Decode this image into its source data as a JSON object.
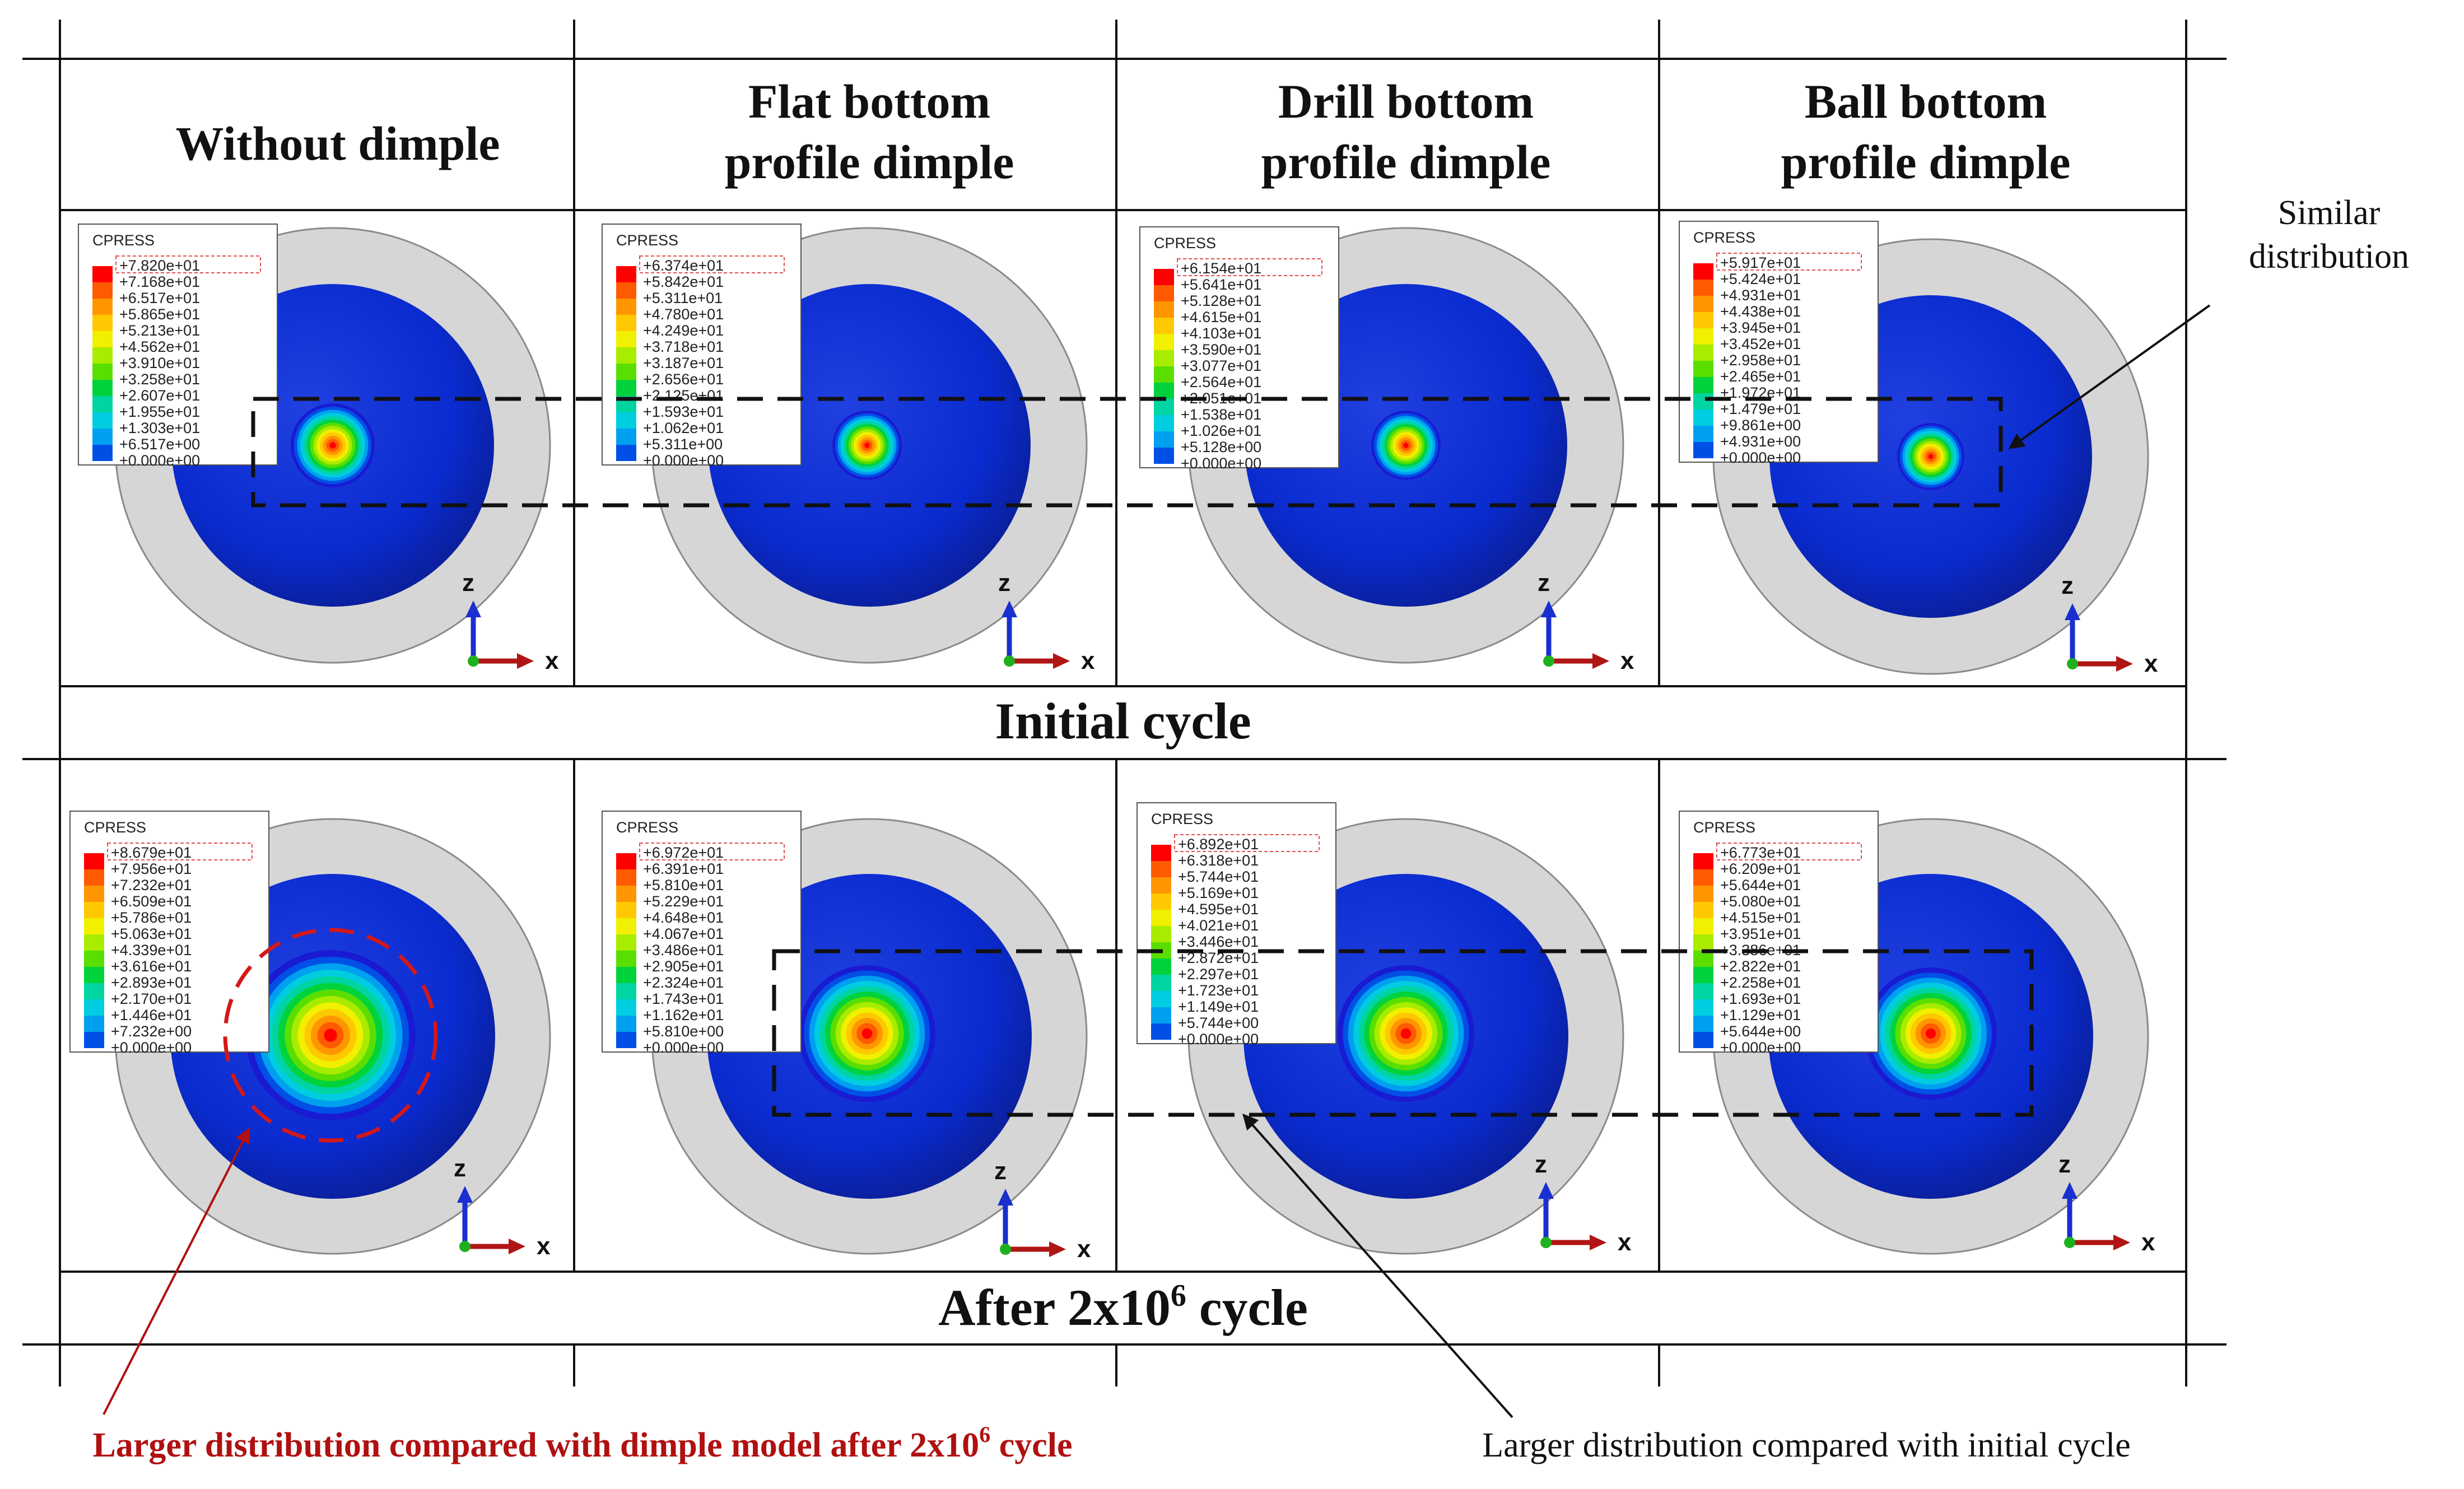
{
  "headers": {
    "col1": "Without dimple",
    "col2_line1": "Flat bottom",
    "col2_line2": "profile dimple",
    "col3_line1": "Drill bottom",
    "col3_line2": "profile dimple",
    "col4_line1": "Ball bottom",
    "col4_line2": "profile dimple"
  },
  "rows": {
    "initial": "Initial cycle",
    "after_prefix": "After 2x10",
    "after_sup": "6",
    "after_suffix": " cycle"
  },
  "annotations": {
    "similar_line1": "Similar",
    "similar_line2": "distribution",
    "larger_initial": "Larger distribution compared with initial cycle",
    "larger_dimple_prefix": "Larger distribution compared with dimple model after 2x10",
    "larger_dimple_sup": "6",
    "larger_dimple_suffix": " cycle"
  },
  "legend_title": "CPRESS",
  "axis": {
    "z": "z",
    "x": "x"
  },
  "colors": {
    "annotation_red": "#b01010",
    "legend_scale": [
      "#ff0000",
      "#ff5a00",
      "#ff9600",
      "#ffc800",
      "#f0f000",
      "#a8ec00",
      "#5ade00",
      "#00d23c",
      "#00d4a0",
      "#00cde0",
      "#00a0f0",
      "#0050e6",
      "#1a1ad2"
    ]
  },
  "panels": [
    {
      "name": "initial-without-dimple",
      "legend": [
        "+7.820e+01",
        "+7.168e+01",
        "+6.517e+01",
        "+5.865e+01",
        "+5.213e+01",
        "+4.562e+01",
        "+3.910e+01",
        "+3.258e+01",
        "+2.607e+01",
        "+1.955e+01",
        "+1.303e+01",
        "+6.517e+00",
        "+0.000e+00"
      ]
    },
    {
      "name": "initial-flat-bottom",
      "legend": [
        "+6.374e+01",
        "+5.842e+01",
        "+5.311e+01",
        "+4.780e+01",
        "+4.249e+01",
        "+3.718e+01",
        "+3.187e+01",
        "+2.656e+01",
        "+2.125e+01",
        "+1.593e+01",
        "+1.062e+01",
        "+5.311e+00",
        "+0.000e+00"
      ]
    },
    {
      "name": "initial-drill-bottom",
      "legend": [
        "+6.154e+01",
        "+5.641e+01",
        "+5.128e+01",
        "+4.615e+01",
        "+4.103e+01",
        "+3.590e+01",
        "+3.077e+01",
        "+2.564e+01",
        "+2.051e+01",
        "+1.538e+01",
        "+1.026e+01",
        "+5.128e+00",
        "+0.000e+00"
      ]
    },
    {
      "name": "initial-ball-bottom",
      "legend": [
        "+5.917e+01",
        "+5.424e+01",
        "+4.931e+01",
        "+4.438e+01",
        "+3.945e+01",
        "+3.452e+01",
        "+2.958e+01",
        "+2.465e+01",
        "+1.972e+01",
        "+1.479e+01",
        "+9.861e+00",
        "+4.931e+00",
        "+0.000e+00"
      ]
    },
    {
      "name": "after-without-dimple",
      "legend": [
        "+8.679e+01",
        "+7.956e+01",
        "+7.232e+01",
        "+6.509e+01",
        "+5.786e+01",
        "+5.063e+01",
        "+4.339e+01",
        "+3.616e+01",
        "+2.893e+01",
        "+2.170e+01",
        "+1.446e+01",
        "+7.232e+00",
        "+0.000e+00"
      ]
    },
    {
      "name": "after-flat-bottom",
      "legend": [
        "+6.972e+01",
        "+6.391e+01",
        "+5.810e+01",
        "+5.229e+01",
        "+4.648e+01",
        "+4.067e+01",
        "+3.486e+01",
        "+2.905e+01",
        "+2.324e+01",
        "+1.743e+01",
        "+1.162e+01",
        "+5.810e+00",
        "+0.000e+00"
      ]
    },
    {
      "name": "after-drill-bottom",
      "legend": [
        "+6.892e+01",
        "+6.318e+01",
        "+5.744e+01",
        "+5.169e+01",
        "+4.595e+01",
        "+4.021e+01",
        "+3.446e+01",
        "+2.872e+01",
        "+2.297e+01",
        "+1.723e+01",
        "+1.149e+01",
        "+5.744e+00",
        "+0.000e+00"
      ]
    },
    {
      "name": "after-ball-bottom",
      "legend": [
        "+6.773e+01",
        "+6.209e+01",
        "+5.644e+01",
        "+5.080e+01",
        "+4.515e+01",
        "+3.951e+01",
        "+3.386e+01",
        "+2.822e+01",
        "+2.258e+01",
        "+1.693e+01",
        "+1.129e+01",
        "+5.644e+00",
        "+0.000e+00"
      ]
    }
  ]
}
